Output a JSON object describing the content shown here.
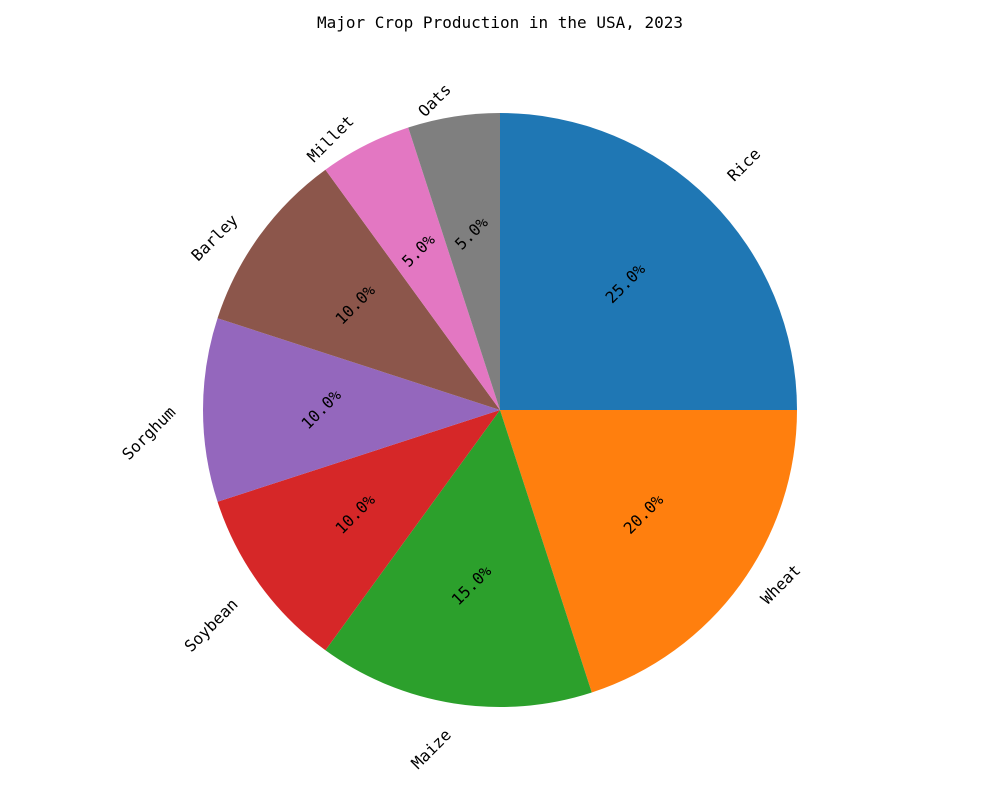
{
  "chart_data": {
    "type": "pie",
    "title": "Major Crop Production in the USA, 2023",
    "categories": [
      "Rice",
      "Wheat",
      "Maize",
      "Soybean",
      "Sorghum",
      "Barley",
      "Millet",
      "Oats"
    ],
    "values": [
      25,
      20,
      15,
      10,
      10,
      10,
      5,
      5
    ],
    "value_labels": [
      "25.0%",
      "20.0%",
      "15.0%",
      "10.0%",
      "10.0%",
      "10.0%",
      "5.0%",
      "5.0%"
    ],
    "colors": [
      "#1f77b4",
      "#ff7f0e",
      "#2ca02c",
      "#d62728",
      "#9467bd",
      "#8c564b",
      "#e377c2",
      "#7f7f7f"
    ],
    "start_angle_deg": 90,
    "direction": "clockwise",
    "label_rotation_deg": 45,
    "legend": "none"
  }
}
